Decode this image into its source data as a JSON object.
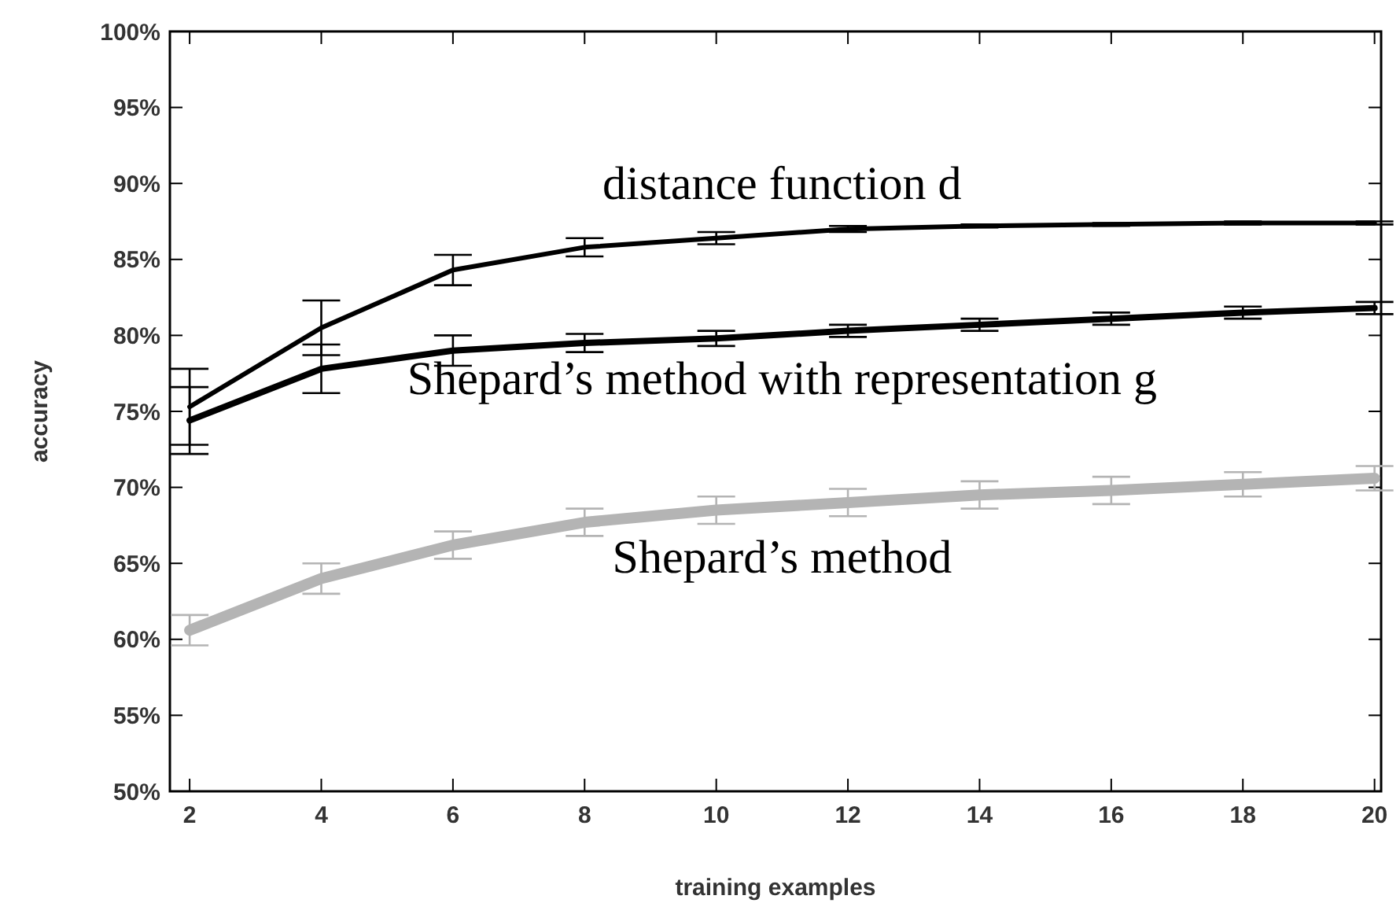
{
  "chart_data": {
    "type": "line",
    "xlabel": "training examples",
    "ylabel": "accuracy",
    "x": [
      2,
      4,
      6,
      8,
      10,
      12,
      14,
      16,
      18,
      20
    ],
    "xlim": [
      1.7,
      20.1
    ],
    "xticks": [
      2,
      4,
      6,
      8,
      10,
      12,
      14,
      16,
      18,
      20
    ],
    "ylim": [
      0.5,
      1.0
    ],
    "yticks": [
      {
        "value": 0.5,
        "label": "50%"
      },
      {
        "value": 0.55,
        "label": "55%"
      },
      {
        "value": 0.6,
        "label": "60%"
      },
      {
        "value": 0.65,
        "label": "65%"
      },
      {
        "value": 0.7,
        "label": "70%"
      },
      {
        "value": 0.75,
        "label": "75%"
      },
      {
        "value": 0.8,
        "label": "80%"
      },
      {
        "value": 0.85,
        "label": "85%"
      },
      {
        "value": 0.9,
        "label": "90%"
      },
      {
        "value": 0.95,
        "label": "95%"
      },
      {
        "value": 1.0,
        "label": "100%"
      }
    ],
    "grid": false,
    "marker": "none",
    "line_style": "solid",
    "series": [
      {
        "name": "distance function d",
        "color": "#000000",
        "values": [
          0.753,
          0.805,
          0.843,
          0.858,
          0.864,
          0.87,
          0.872,
          0.873,
          0.874,
          0.874
        ],
        "errors": [
          0.025,
          0.018,
          0.01,
          0.006,
          0.004,
          0.002,
          0.001,
          0.001,
          0.001,
          0.001
        ]
      },
      {
        "name": "Shepard’s method with representation g",
        "color": "#000000",
        "values": [
          0.744,
          0.778,
          0.79,
          0.795,
          0.798,
          0.803,
          0.807,
          0.811,
          0.815,
          0.818
        ],
        "errors": [
          0.022,
          0.016,
          0.01,
          0.006,
          0.005,
          0.004,
          0.004,
          0.004,
          0.004,
          0.004
        ]
      },
      {
        "name": "Shepard’s method",
        "color": "#b4b4b4",
        "values": [
          0.606,
          0.64,
          0.662,
          0.677,
          0.685,
          0.69,
          0.695,
          0.698,
          0.702,
          0.706
        ],
        "errors": [
          0.01,
          0.01,
          0.009,
          0.009,
          0.009,
          0.009,
          0.009,
          0.009,
          0.008,
          0.008
        ]
      }
    ]
  }
}
